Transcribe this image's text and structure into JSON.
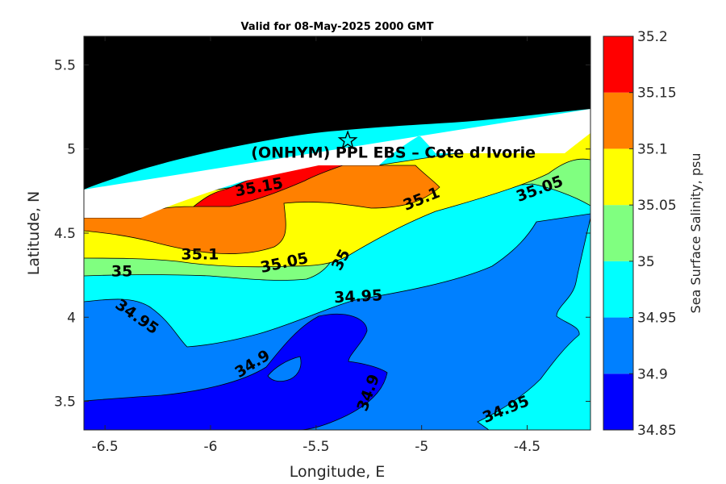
{
  "chart_data": {
    "type": "heatmap",
    "title": "Valid for 08-May-2025 2000 GMT",
    "xlabel": "Longitude, E",
    "ylabel": "Latitude, N",
    "xlim": [
      -6.6,
      -4.2
    ],
    "ylim": [
      3.33,
      5.67
    ],
    "x_ticks": [
      -6.5,
      -6,
      -5.5,
      -5,
      -4.5
    ],
    "x_tick_labels": [
      "-6.5",
      "-6",
      "-5.5",
      "-5",
      "-4.5"
    ],
    "y_ticks": [
      3.5,
      4,
      4.5,
      5,
      5.5
    ],
    "y_tick_labels": [
      "3.5",
      "4",
      "4.5",
      "5",
      "5.5"
    ],
    "colorbar": {
      "label": "Sea Surface Salinity, psu",
      "levels": [
        34.85,
        34.9,
        34.95,
        35,
        35.05,
        35.1,
        35.15,
        35.2
      ],
      "level_labels": [
        "34.85",
        "34.9",
        "34.95",
        "35",
        "35.05",
        "35.1",
        "35.15",
        "35.2"
      ],
      "colors": [
        "#0000ff",
        "#0080ff",
        "#00ffff",
        "#80ff80",
        "#ffff00",
        "#ff8000",
        "#ff0000"
      ]
    },
    "land_color": "#000000",
    "contour_labels": [
      {
        "text": "35.15",
        "x": -5.77,
        "y": 4.77,
        "rotation": -10
      },
      {
        "text": "35.1",
        "x": -5.0,
        "y": 4.7,
        "rotation": -22
      },
      {
        "text": "35.05",
        "x": -4.44,
        "y": 4.76,
        "rotation": -20
      },
      {
        "text": "35.1",
        "x": -6.05,
        "y": 4.37,
        "rotation": 0
      },
      {
        "text": "35.05",
        "x": -5.65,
        "y": 4.32,
        "rotation": -12
      },
      {
        "text": "35",
        "x": -5.38,
        "y": 4.34,
        "rotation": -62
      },
      {
        "text": "35",
        "x": -6.42,
        "y": 4.27,
        "rotation": 0
      },
      {
        "text": "34.95",
        "x": -6.35,
        "y": 4.0,
        "rotation": 35
      },
      {
        "text": "34.95",
        "x": -5.3,
        "y": 4.12,
        "rotation": -3
      },
      {
        "text": "34.9",
        "x": -5.8,
        "y": 3.72,
        "rotation": -32
      },
      {
        "text": "34.9",
        "x": -5.25,
        "y": 3.55,
        "rotation": -70
      },
      {
        "text": "34.95",
        "x": -4.6,
        "y": 3.45,
        "rotation": -22
      }
    ],
    "site": {
      "label": "(ONHYM) PPL EBS  – Cote d’Ivorie",
      "x": -5.35,
      "y": 5.05,
      "marker": "star-icon"
    }
  }
}
